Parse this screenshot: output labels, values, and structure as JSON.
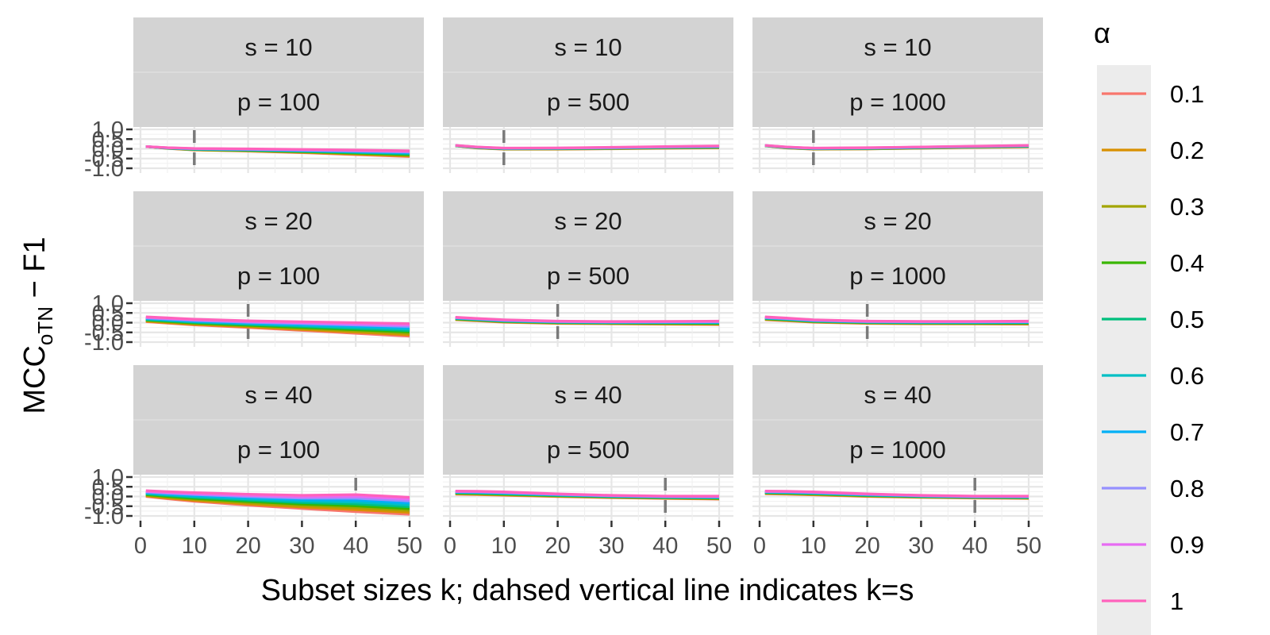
{
  "chart_data": {
    "type": "line",
    "layout": "facet-grid",
    "xlabel": "Subset sizes k; dahsed vertical line indicates k=s",
    "ylabel": "MCC",
    "ylabel_subscript": "oTN",
    "ylabel_suffix": " − F1",
    "xlim": [
      0,
      50
    ],
    "ylim": [
      -1.0,
      1.0
    ],
    "x_ticks": [
      "0",
      "10",
      "20",
      "30",
      "40",
      "50"
    ],
    "y_ticks": [
      "-1.0",
      "-0.5",
      "0.0",
      "0.5",
      "1.0"
    ],
    "x": [
      1,
      5,
      10,
      20,
      30,
      40,
      50
    ],
    "row_strips": [
      "s = 10",
      "s = 20",
      "s = 40"
    ],
    "col_strips": [
      "p = 100",
      "p = 500",
      "p = 1000"
    ],
    "legend": {
      "title": "α",
      "entries": [
        "0.1",
        "0.2",
        "0.3",
        "0.4",
        "0.5",
        "0.6",
        "0.7",
        "0.8",
        "0.9",
        "1"
      ],
      "colors": [
        "#F8766D",
        "#D89000",
        "#A3A500",
        "#39B600",
        "#00BF7D",
        "#00BFC4",
        "#00B0F6",
        "#9590FF",
        "#E76BF3",
        "#FF62BC"
      ]
    },
    "panels": [
      {
        "row": 0,
        "col": 0,
        "s": 10,
        "lo": [
          0.12,
          0.02,
          -0.06,
          -0.12,
          -0.2,
          -0.3,
          -0.4
        ],
        "hi": [
          0.12,
          0.06,
          0.02,
          0.0,
          -0.03,
          -0.06,
          -0.1
        ]
      },
      {
        "row": 0,
        "col": 1,
        "s": 10,
        "lo": [
          0.15,
          0.04,
          -0.02,
          -0.02,
          0.0,
          0.03,
          0.05
        ],
        "hi": [
          0.18,
          0.1,
          0.04,
          0.05,
          0.08,
          0.12,
          0.15
        ]
      },
      {
        "row": 0,
        "col": 2,
        "s": 10,
        "lo": [
          0.15,
          0.04,
          -0.02,
          -0.01,
          0.03,
          0.07,
          0.1
        ],
        "hi": [
          0.18,
          0.1,
          0.04,
          0.06,
          0.1,
          0.14,
          0.18
        ]
      },
      {
        "row": 1,
        "col": 0,
        "s": 20,
        "lo": [
          0.05,
          -0.03,
          -0.12,
          -0.25,
          -0.4,
          -0.55,
          -0.7
        ],
        "hi": [
          0.3,
          0.25,
          0.18,
          0.1,
          0.05,
          0.0,
          -0.05
        ]
      },
      {
        "row": 1,
        "col": 1,
        "s": 20,
        "lo": [
          0.15,
          0.1,
          0.02,
          -0.04,
          -0.06,
          -0.08,
          -0.1
        ],
        "hi": [
          0.28,
          0.22,
          0.15,
          0.08,
          0.06,
          0.07,
          0.08
        ]
      },
      {
        "row": 1,
        "col": 2,
        "s": 20,
        "lo": [
          0.15,
          0.1,
          0.02,
          -0.04,
          -0.06,
          -0.07,
          -0.08
        ],
        "hi": [
          0.3,
          0.24,
          0.15,
          0.08,
          0.07,
          0.07,
          0.08
        ]
      },
      {
        "row": 2,
        "col": 0,
        "s": 40,
        "lo": [
          0.0,
          -0.12,
          -0.25,
          -0.45,
          -0.62,
          -0.78,
          -0.92
        ],
        "hi": [
          0.3,
          0.25,
          0.2,
          0.12,
          0.06,
          0.1,
          -0.04
        ]
      },
      {
        "row": 2,
        "col": 1,
        "s": 40,
        "lo": [
          0.12,
          0.1,
          0.06,
          -0.01,
          -0.06,
          -0.1,
          -0.14
        ],
        "hi": [
          0.28,
          0.27,
          0.24,
          0.14,
          0.06,
          0.02,
          0.02
        ]
      },
      {
        "row": 2,
        "col": 2,
        "s": 40,
        "lo": [
          0.14,
          0.12,
          0.08,
          0.0,
          -0.05,
          -0.08,
          -0.1
        ],
        "hi": [
          0.28,
          0.27,
          0.24,
          0.14,
          0.06,
          0.02,
          0.02
        ]
      }
    ]
  }
}
